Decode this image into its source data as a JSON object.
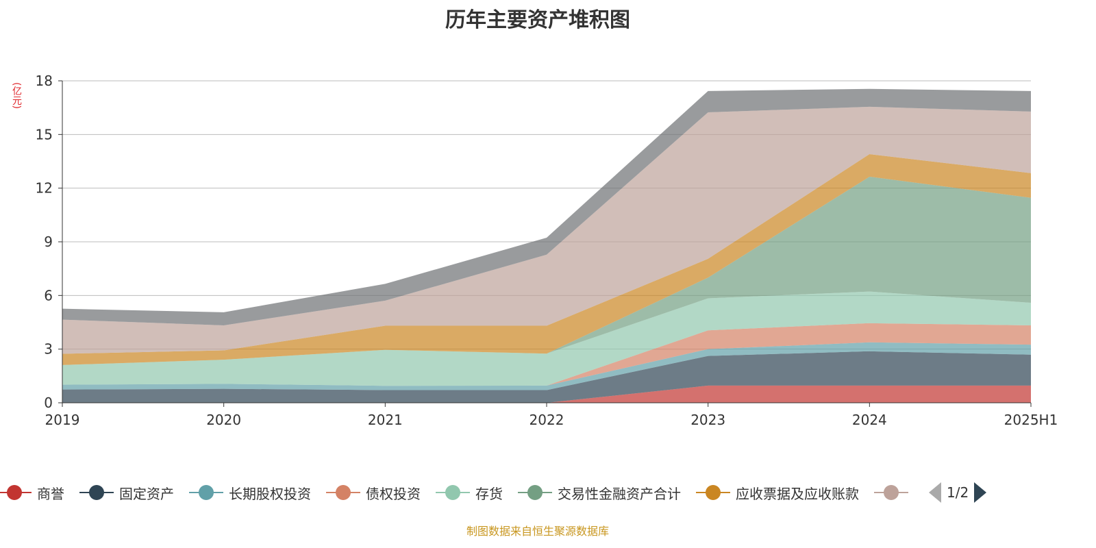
{
  "chart_data": {
    "type": "area",
    "stacked": true,
    "title": "历年主要资产堆积图",
    "ylabel": "(亿元)",
    "xlabel": "",
    "categories": [
      "2019",
      "2020",
      "2021",
      "2022",
      "2023",
      "2024",
      "2025H1"
    ],
    "ylim": [
      0,
      18
    ],
    "yticks": [
      0,
      3,
      6,
      9,
      12,
      15,
      18
    ],
    "grid": true,
    "legend_placement": "bottom",
    "legend_page": "1/2",
    "series": [
      {
        "name": "商誉",
        "color": "#c23531",
        "values": [
          0,
          0,
          0,
          0,
          0.96,
          0.96,
          0.96
        ]
      },
      {
        "name": "固定资产",
        "color": "#2f4554",
        "values": [
          0.74,
          0.78,
          0.71,
          0.71,
          1.66,
          1.92,
          1.73
        ]
      },
      {
        "name": "长期股权投资",
        "color": "#61a0a8",
        "values": [
          0.27,
          0.28,
          0.24,
          0.25,
          0.38,
          0.5,
          0.56
        ]
      },
      {
        "name": "债权投资",
        "color": "#d48265",
        "values": [
          0,
          0,
          0,
          0,
          1.05,
          1.07,
          1.08
        ]
      },
      {
        "name": "存货",
        "color": "#91c7ae",
        "values": [
          1.1,
          1.35,
          2.01,
          1.79,
          1.79,
          1.77,
          1.26
        ]
      },
      {
        "name": "交易性金融资产合计",
        "color": "#749f83",
        "values": [
          0,
          0,
          0,
          0,
          1.16,
          6.42,
          5.87
        ]
      },
      {
        "name": "应收票据及应收账款",
        "color": "#ca8622",
        "values": [
          0.63,
          0.52,
          1.35,
          1.56,
          1.05,
          1.26,
          1.38
        ]
      },
      {
        "name": "",
        "color": "#bda29a",
        "values": [
          1.91,
          1.4,
          1.4,
          3.97,
          8.19,
          2.65,
          3.44
        ]
      },
      {
        "name": "",
        "color": "#6e7074",
        "values": [
          0.61,
          0.73,
          0.94,
          0.95,
          1.19,
          1.0,
          1.15
        ]
      }
    ]
  },
  "source": "制图数据来自恒生聚源数据库"
}
